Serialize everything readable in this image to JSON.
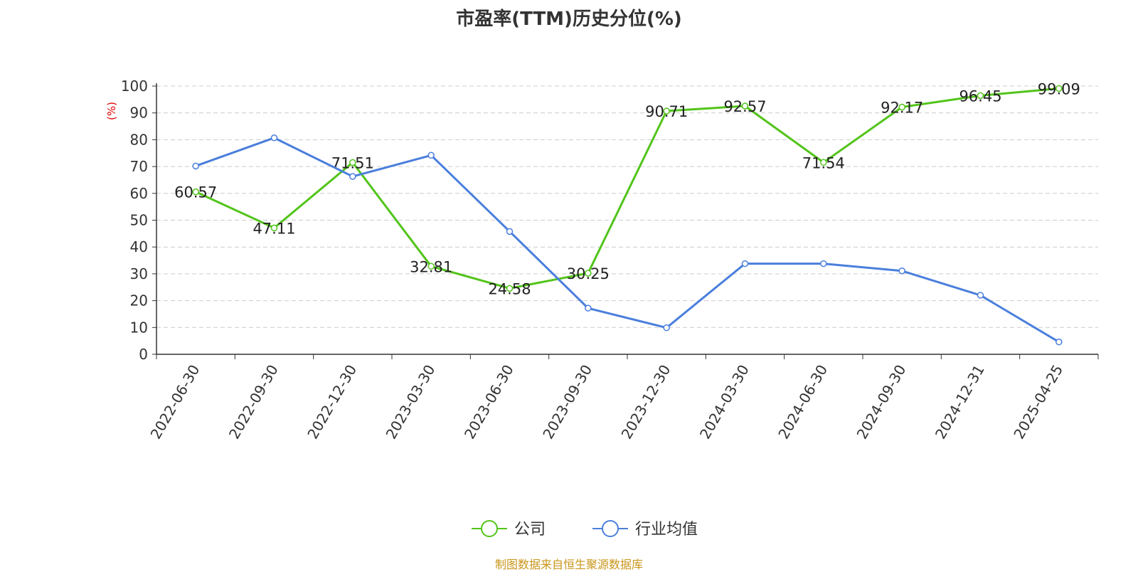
{
  "chart_data": {
    "type": "line",
    "title": "市盈率(TTM)历史分位(%)",
    "ylabel": "(%)",
    "xlabel": "",
    "ylim": [
      0,
      100
    ],
    "y_ticks": [
      0,
      10,
      20,
      30,
      40,
      50,
      60,
      70,
      80,
      90,
      100
    ],
    "categories": [
      "2022-06-30",
      "2022-09-30",
      "2022-12-30",
      "2023-03-30",
      "2023-06-30",
      "2023-09-30",
      "2023-12-30",
      "2024-03-30",
      "2024-06-30",
      "2024-09-30",
      "2024-12-31",
      "2025-04-25"
    ],
    "grid": true,
    "legend_position": "bottom",
    "series": [
      {
        "name": "公司",
        "color": "#52c41a",
        "values": [
          60.57,
          47.11,
          71.51,
          32.81,
          24.58,
          30.25,
          90.71,
          92.57,
          71.54,
          92.17,
          96.45,
          99.09
        ],
        "labels": [
          "60.57",
          "47.11",
          "71.51",
          "32.81",
          "24.58",
          "30.25",
          "90.71",
          "92.57",
          "71.54",
          "92.17",
          "96.45",
          "99.09"
        ]
      },
      {
        "name": "行业均值",
        "color": "#4a7fdc",
        "values": [
          70.2,
          80.7,
          66.3,
          74.2,
          45.8,
          17.2,
          9.9,
          33.8,
          33.8,
          31.1,
          22.0,
          4.6
        ]
      }
    ]
  },
  "colors": {
    "ylabel": "#e00000",
    "source": "#c9961a",
    "grid": "#cccccc",
    "axis": "#333333"
  },
  "source_note": "制图数据来自恒生聚源数据库"
}
